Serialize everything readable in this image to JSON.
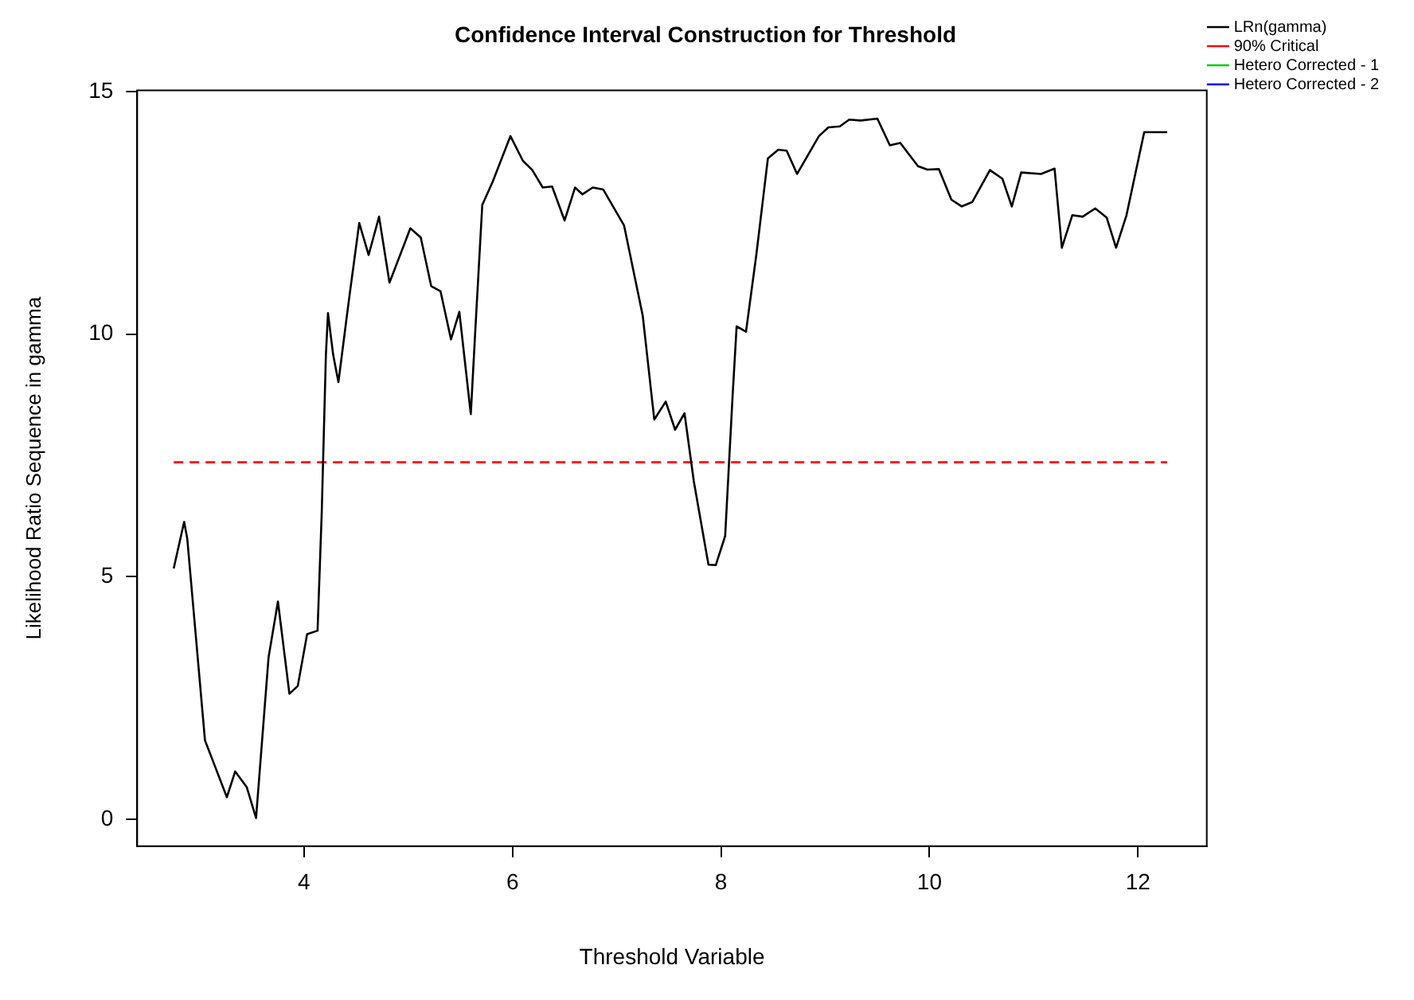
{
  "chart_data": {
    "type": "line",
    "title": "Confidence Interval Construction for Threshold",
    "xlabel": "Threshold Variable",
    "ylabel": "Likelihood Ratio Sequence in gamma",
    "xlim": [
      2.4,
      12.66
    ],
    "xticks": [
      4,
      6,
      8,
      10,
      12
    ],
    "ylim": [
      -0.55,
      15.02
    ],
    "yticks": [
      0,
      5,
      10,
      15
    ],
    "grid": false,
    "legend": "top right",
    "marker": "none",
    "series": [
      {
        "name": "LRn(gamma)",
        "color": "#000000",
        "line_style": "solid",
        "x": [
          2.75,
          2.85,
          2.88,
          3.05,
          3.26,
          3.34,
          3.45,
          3.54,
          3.66,
          3.75,
          3.86,
          3.94,
          4.03,
          4.13,
          4.17,
          4.21,
          4.23,
          4.28,
          4.33,
          4.43,
          4.53,
          4.62,
          4.72,
          4.82,
          5.02,
          5.12,
          5.22,
          5.31,
          5.41,
          5.49,
          5.6,
          5.64,
          5.71,
          5.81,
          5.98,
          6.1,
          6.19,
          6.29,
          6.38,
          6.5,
          6.6,
          6.67,
          6.77,
          6.87,
          7.07,
          7.25,
          7.36,
          7.47,
          7.56,
          7.65,
          7.74,
          7.88,
          7.95,
          8.04,
          8.11,
          8.15,
          8.24,
          8.34,
          8.45,
          8.55,
          8.63,
          8.73,
          8.94,
          9.03,
          9.14,
          9.23,
          9.34,
          9.5,
          9.62,
          9.72,
          9.89,
          9.98,
          10.09,
          10.21,
          10.31,
          10.41,
          10.58,
          10.7,
          10.79,
          10.88,
          11.07,
          11.2,
          11.27,
          11.37,
          11.47,
          11.59,
          11.7,
          11.79,
          11.89,
          12.06,
          12.28
        ],
        "values": [
          5.17,
          6.13,
          5.79,
          1.63,
          0.46,
          0.99,
          0.67,
          0.03,
          3.34,
          4.49,
          2.59,
          2.75,
          3.82,
          3.89,
          6.32,
          9.57,
          10.43,
          9.57,
          9.01,
          10.69,
          12.29,
          11.63,
          12.42,
          11.06,
          12.18,
          11.99,
          10.99,
          10.88,
          9.89,
          10.46,
          8.35,
          9.95,
          12.66,
          13.14,
          14.08,
          13.57,
          13.38,
          13.02,
          13.04,
          12.34,
          13.02,
          12.88,
          13.02,
          12.98,
          12.24,
          10.37,
          8.24,
          8.61,
          8.03,
          8.37,
          6.96,
          5.25,
          5.24,
          5.84,
          8.67,
          10.16,
          10.05,
          11.65,
          13.62,
          13.8,
          13.78,
          13.3,
          14.08,
          14.26,
          14.28,
          14.42,
          14.4,
          14.44,
          13.89,
          13.94,
          13.46,
          13.39,
          13.4,
          12.77,
          12.63,
          12.72,
          13.38,
          13.2,
          12.63,
          13.33,
          13.3,
          13.41,
          11.78,
          12.45,
          12.42,
          12.59,
          12.4,
          11.78,
          12.45,
          14.16,
          14.16
        ]
      },
      {
        "name": "90% Critical",
        "color": "#ff0000",
        "line_style": "dashed",
        "x": [
          2.75,
          12.28
        ],
        "values": [
          7.36,
          7.36
        ]
      },
      {
        "name": "Hetero Corrected - 1",
        "color": "#00cc00",
        "line_style": "solid"
      },
      {
        "name": "Hetero Corrected - 2",
        "color": "#0000ff",
        "line_style": "solid"
      }
    ]
  }
}
